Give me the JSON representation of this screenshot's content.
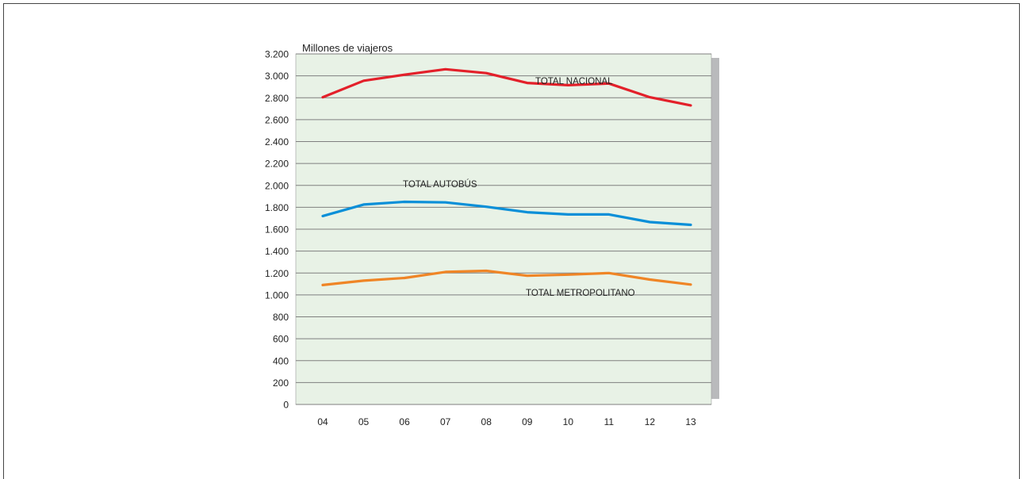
{
  "chart_data": {
    "type": "line",
    "ylabel": "Millones de viajeros",
    "ylim": [
      0,
      3200
    ],
    "yticks": [
      0,
      200,
      400,
      600,
      800,
      1000,
      1200,
      1400,
      1600,
      1800,
      2000,
      2200,
      2400,
      2600,
      2800,
      3000,
      3200
    ],
    "ytick_labels": [
      "0",
      "200",
      "400",
      "600",
      "800",
      "1.000",
      "1.200",
      "1.400",
      "1.600",
      "1.800",
      "2.000",
      "2.200",
      "2.400",
      "2.600",
      "2.800",
      "3.000",
      "3.200"
    ],
    "categories": [
      "04",
      "05",
      "06",
      "07",
      "08",
      "09",
      "10",
      "11",
      "12",
      "13"
    ],
    "grid": true,
    "background_color": "#e8f2e6",
    "series": [
      {
        "name": "TOTAL NACIONAL",
        "color": "#e3202a",
        "values": [
          2805,
          2955,
          3010,
          3060,
          3025,
          2935,
          2915,
          2930,
          2805,
          2730
        ]
      },
      {
        "name": "TOTAL AUTOBÚS",
        "color": "#0a8fd8",
        "values": [
          1720,
          1825,
          1850,
          1845,
          1805,
          1755,
          1735,
          1735,
          1665,
          1640
        ]
      },
      {
        "name": "TOTAL METROPOLITANO",
        "color": "#ef8526",
        "values": [
          1090,
          1130,
          1155,
          1210,
          1220,
          1175,
          1185,
          1200,
          1140,
          1095
        ]
      }
    ]
  }
}
